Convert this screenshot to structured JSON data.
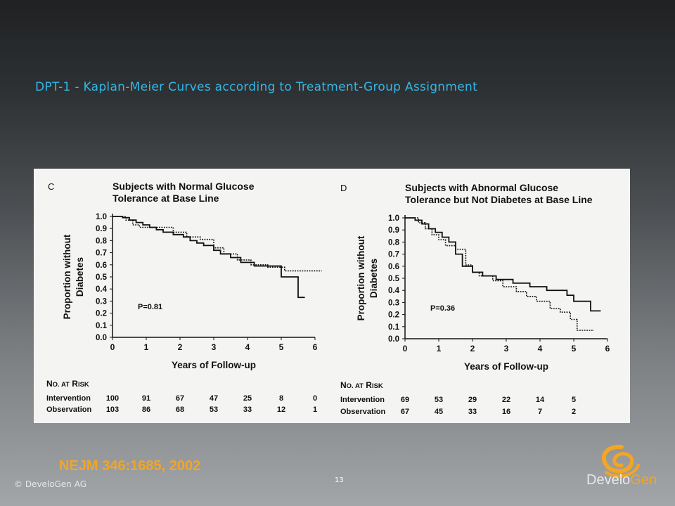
{
  "slide": {
    "title": "DPT-1 - Kaplan-Meier Curves according to Treatment-Group Assignment",
    "citation": "NEJM 346:1685, 2002",
    "copyright": "© DeveloGen AG",
    "page_number": "13",
    "logo": {
      "text_part1": "Develo",
      "text_part2": "Gen",
      "icon": "swirl-logo-icon",
      "accent": "#f3a524"
    },
    "title_color": "#33b7e6"
  },
  "chart_data": [
    {
      "type": "line",
      "panel_letter": "C",
      "title": "Subjects with Normal Glucose\nTolerance at Base Line",
      "xlabel": "Years of Follow-up",
      "ylabel": "Proportion without\nDiabetes",
      "xlim": [
        0,
        6
      ],
      "ylim": [
        0,
        1.0
      ],
      "x_ticks": [
        "0",
        "1",
        "2",
        "3",
        "4",
        "5",
        "6"
      ],
      "y_ticks": [
        "0.0",
        "0.1",
        "0.2",
        "0.3",
        "0.4",
        "0.5",
        "0.6",
        "0.7",
        "0.8",
        "0.9",
        "1.0"
      ],
      "annotation": "P=0.81",
      "series": [
        {
          "style": "solid",
          "points": [
            [
              0,
              1.0
            ],
            [
              0.3,
              1.0
            ],
            [
              0.3,
              0.99
            ],
            [
              0.5,
              0.99
            ],
            [
              0.5,
              0.97
            ],
            [
              0.7,
              0.97
            ],
            [
              0.7,
              0.95
            ],
            [
              0.9,
              0.95
            ],
            [
              0.9,
              0.93
            ],
            [
              1.1,
              0.93
            ],
            [
              1.1,
              0.91
            ],
            [
              1.3,
              0.91
            ],
            [
              1.3,
              0.89
            ],
            [
              1.5,
              0.89
            ],
            [
              1.5,
              0.87
            ],
            [
              1.8,
              0.87
            ],
            [
              1.8,
              0.85
            ],
            [
              2.1,
              0.85
            ],
            [
              2.1,
              0.83
            ],
            [
              2.3,
              0.83
            ],
            [
              2.3,
              0.8
            ],
            [
              2.5,
              0.8
            ],
            [
              2.5,
              0.78
            ],
            [
              2.7,
              0.78
            ],
            [
              2.7,
              0.76
            ],
            [
              3.0,
              0.76
            ],
            [
              3.0,
              0.72
            ],
            [
              3.2,
              0.72
            ],
            [
              3.2,
              0.69
            ],
            [
              3.5,
              0.69
            ],
            [
              3.5,
              0.66
            ],
            [
              3.8,
              0.66
            ],
            [
              3.8,
              0.62
            ],
            [
              4.2,
              0.62
            ],
            [
              4.2,
              0.59
            ],
            [
              5.0,
              0.59
            ],
            [
              5.0,
              0.55
            ],
            [
              5.0,
              0.5
            ],
            [
              5.5,
              0.5
            ],
            [
              5.5,
              0.33
            ],
            [
              5.7,
              0.33
            ]
          ]
        },
        {
          "style": "dotted",
          "points": [
            [
              0,
              1.0
            ],
            [
              0.4,
              1.0
            ],
            [
              0.4,
              0.97
            ],
            [
              0.6,
              0.97
            ],
            [
              0.6,
              0.93
            ],
            [
              0.8,
              0.93
            ],
            [
              0.8,
              0.91
            ],
            [
              1.8,
              0.91
            ],
            [
              1.8,
              0.87
            ],
            [
              2.2,
              0.87
            ],
            [
              2.2,
              0.83
            ],
            [
              2.6,
              0.83
            ],
            [
              2.6,
              0.81
            ],
            [
              3.0,
              0.81
            ],
            [
              3.0,
              0.74
            ],
            [
              3.3,
              0.74
            ],
            [
              3.3,
              0.69
            ],
            [
              3.7,
              0.69
            ],
            [
              3.7,
              0.64
            ],
            [
              4.1,
              0.64
            ],
            [
              4.1,
              0.6
            ],
            [
              4.6,
              0.6
            ],
            [
              4.6,
              0.58
            ],
            [
              5.1,
              0.58
            ],
            [
              5.1,
              0.55
            ],
            [
              6.2,
              0.55
            ]
          ]
        }
      ],
      "at_risk": {
        "header": "No. at Risk",
        "rows": [
          {
            "label": "Intervention",
            "values": [
              "100",
              "91",
              "67",
              "47",
              "25",
              "8",
              "0"
            ]
          },
          {
            "label": "Observation",
            "values": [
              "103",
              "86",
              "68",
              "53",
              "33",
              "12",
              "1"
            ]
          }
        ]
      }
    },
    {
      "type": "line",
      "panel_letter": "D",
      "title": "Subjects with Abnormal Glucose\nTolerance but Not Diabetes at Base Line",
      "xlabel": "Years of Follow-up",
      "ylabel": "Proportion without\nDiabetes",
      "xlim": [
        0,
        6
      ],
      "ylim": [
        0,
        1.0
      ],
      "x_ticks": [
        "0",
        "1",
        "2",
        "3",
        "4",
        "5",
        "6"
      ],
      "y_ticks": [
        "0.0",
        "0.1",
        "0.2",
        "0.3",
        "0.4",
        "0.5",
        "0.6",
        "0.7",
        "0.8",
        "0.9",
        "1.0"
      ],
      "annotation": "P=0.36",
      "series": [
        {
          "style": "solid",
          "points": [
            [
              0,
              1.0
            ],
            [
              0.3,
              1.0
            ],
            [
              0.3,
              0.98
            ],
            [
              0.5,
              0.98
            ],
            [
              0.5,
              0.95
            ],
            [
              0.7,
              0.95
            ],
            [
              0.7,
              0.91
            ],
            [
              0.9,
              0.91
            ],
            [
              0.9,
              0.88
            ],
            [
              1.1,
              0.88
            ],
            [
              1.1,
              0.84
            ],
            [
              1.3,
              0.84
            ],
            [
              1.3,
              0.8
            ],
            [
              1.5,
              0.8
            ],
            [
              1.5,
              0.7
            ],
            [
              1.7,
              0.7
            ],
            [
              1.7,
              0.6
            ],
            [
              2.0,
              0.6
            ],
            [
              2.0,
              0.55
            ],
            [
              2.3,
              0.55
            ],
            [
              2.3,
              0.52
            ],
            [
              2.7,
              0.52
            ],
            [
              2.7,
              0.49
            ],
            [
              3.2,
              0.49
            ],
            [
              3.2,
              0.46
            ],
            [
              3.7,
              0.46
            ],
            [
              3.7,
              0.43
            ],
            [
              4.2,
              0.43
            ],
            [
              4.2,
              0.4
            ],
            [
              4.8,
              0.4
            ],
            [
              4.8,
              0.36
            ],
            [
              5.0,
              0.36
            ],
            [
              5.0,
              0.31
            ],
            [
              5.5,
              0.31
            ],
            [
              5.5,
              0.23
            ],
            [
              5.8,
              0.23
            ]
          ]
        },
        {
          "style": "dotted",
          "points": [
            [
              0,
              1.0
            ],
            [
              0.4,
              1.0
            ],
            [
              0.4,
              0.96
            ],
            [
              0.6,
              0.96
            ],
            [
              0.6,
              0.91
            ],
            [
              0.8,
              0.91
            ],
            [
              0.8,
              0.86
            ],
            [
              1.0,
              0.86
            ],
            [
              1.0,
              0.82
            ],
            [
              1.2,
              0.82
            ],
            [
              1.2,
              0.77
            ],
            [
              1.5,
              0.77
            ],
            [
              1.5,
              0.74
            ],
            [
              1.8,
              0.74
            ],
            [
              1.8,
              0.61
            ],
            [
              2.0,
              0.61
            ],
            [
              2.0,
              0.55
            ],
            [
              2.2,
              0.55
            ],
            [
              2.2,
              0.52
            ],
            [
              2.6,
              0.52
            ],
            [
              2.6,
              0.48
            ],
            [
              2.9,
              0.48
            ],
            [
              2.9,
              0.43
            ],
            [
              3.3,
              0.43
            ],
            [
              3.3,
              0.39
            ],
            [
              3.6,
              0.39
            ],
            [
              3.6,
              0.35
            ],
            [
              3.9,
              0.35
            ],
            [
              3.9,
              0.31
            ],
            [
              4.3,
              0.31
            ],
            [
              4.3,
              0.25
            ],
            [
              4.6,
              0.25
            ],
            [
              4.6,
              0.22
            ],
            [
              4.9,
              0.22
            ],
            [
              4.9,
              0.16
            ],
            [
              5.1,
              0.16
            ],
            [
              5.1,
              0.07
            ],
            [
              5.6,
              0.07
            ]
          ]
        }
      ],
      "at_risk": {
        "header": "No. at Risk",
        "rows": [
          {
            "label": "Intervention",
            "values": [
              "69",
              "53",
              "29",
              "22",
              "14",
              "5"
            ]
          },
          {
            "label": "Observation",
            "values": [
              "67",
              "45",
              "33",
              "16",
              "7",
              "2"
            ]
          }
        ]
      }
    }
  ]
}
